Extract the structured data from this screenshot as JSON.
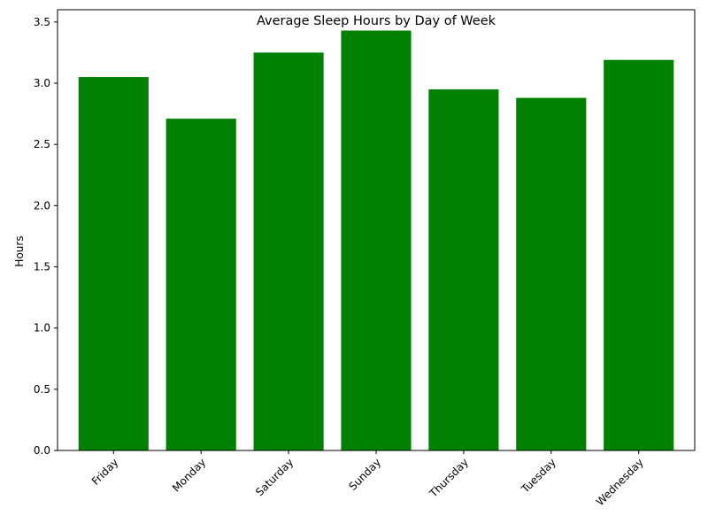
{
  "chart_data": {
    "type": "bar",
    "title": "Average Sleep Hours by Day of Week",
    "xlabel": "",
    "ylabel": "Hours",
    "categories": [
      "Friday",
      "Monday",
      "Saturday",
      "Sunday",
      "Thursday",
      "Tuesday",
      "Wednesday"
    ],
    "values": [
      3.05,
      2.71,
      3.25,
      3.43,
      2.95,
      2.88,
      3.19
    ],
    "ylim": [
      0,
      3.6
    ],
    "yticks": [
      0.0,
      0.5,
      1.0,
      1.5,
      2.0,
      2.5,
      3.0,
      3.5
    ],
    "ytick_labels": [
      "0.0",
      "0.5",
      "1.0",
      "1.5",
      "2.0",
      "2.5",
      "3.0",
      "3.5"
    ],
    "bar_color": "#008000",
    "grid": false,
    "legend": "none"
  }
}
